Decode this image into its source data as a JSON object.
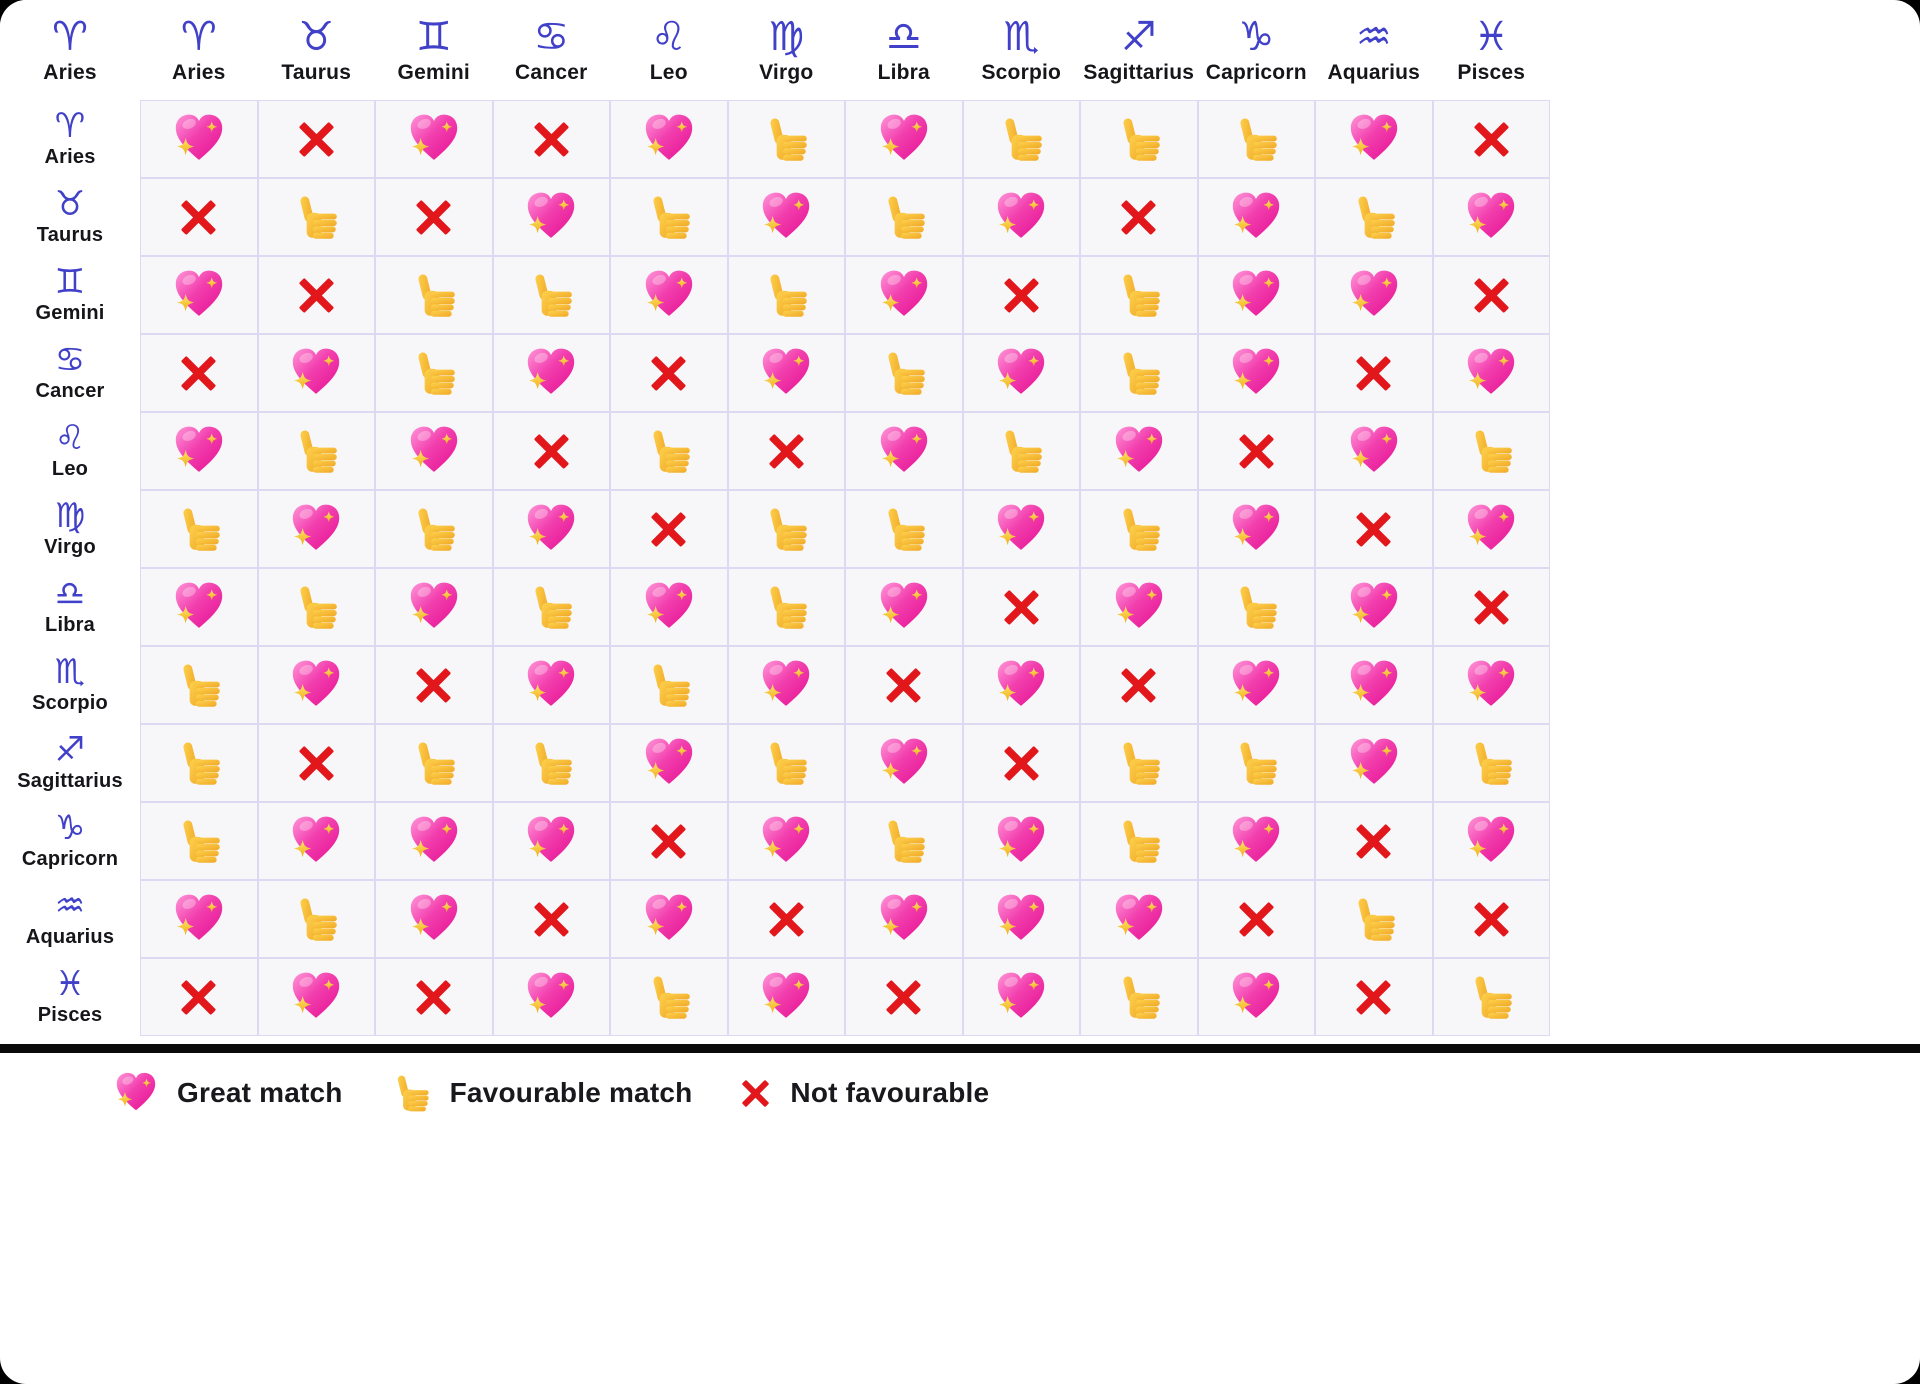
{
  "table": {
    "corner": {
      "symbol": "♈",
      "label": "Aries"
    },
    "columns": [
      {
        "symbol": "♈",
        "label": "Aries"
      },
      {
        "symbol": "♉",
        "label": "Taurus"
      },
      {
        "symbol": "♊",
        "label": "Gemini"
      },
      {
        "symbol": "♋",
        "label": "Cancer"
      },
      {
        "symbol": "♌",
        "label": "Leo"
      },
      {
        "symbol": "♍",
        "label": "Virgo"
      },
      {
        "symbol": "♎",
        "label": "Libra"
      },
      {
        "symbol": "♏",
        "label": "Scorpio"
      },
      {
        "symbol": "♐",
        "label": "Sagittarius"
      },
      {
        "symbol": "♑",
        "label": "Capricorn"
      },
      {
        "symbol": "♒",
        "label": "Aquarius"
      },
      {
        "symbol": "♓",
        "label": "Pisces"
      }
    ],
    "rows": [
      {
        "symbol": "♈",
        "label": "Aries"
      },
      {
        "symbol": "♉",
        "label": "Taurus"
      },
      {
        "symbol": "♊",
        "label": "Gemini"
      },
      {
        "symbol": "♋",
        "label": "Cancer"
      },
      {
        "symbol": "♌",
        "label": "Leo"
      },
      {
        "symbol": "♍",
        "label": "Virgo"
      },
      {
        "symbol": "♎",
        "label": "Libra"
      },
      {
        "symbol": "♏",
        "label": "Scorpio"
      },
      {
        "symbol": "♐",
        "label": "Sagittarius"
      },
      {
        "symbol": "♑",
        "label": "Capricorn"
      },
      {
        "symbol": "♒",
        "label": "Aquarius"
      },
      {
        "symbol": "♓",
        "label": "Pisces"
      }
    ]
  },
  "chart_data": {
    "type": "heatmap",
    "columns": [
      "Aries",
      "Taurus",
      "Gemini",
      "Cancer",
      "Leo",
      "Virgo",
      "Libra",
      "Scorpio",
      "Sagittarius",
      "Capricorn",
      "Aquarius",
      "Pisces"
    ],
    "rows": [
      "Aries",
      "Taurus",
      "Gemini",
      "Cancer",
      "Leo",
      "Virgo",
      "Libra",
      "Scorpio",
      "Sagittarius",
      "Capricorn",
      "Aquarius",
      "Pisces"
    ],
    "values": [
      [
        "G",
        "N",
        "G",
        "N",
        "G",
        "F",
        "G",
        "F",
        "F",
        "F",
        "G",
        "N"
      ],
      [
        "N",
        "F",
        "N",
        "G",
        "F",
        "G",
        "F",
        "G",
        "N",
        "G",
        "F",
        "G"
      ],
      [
        "G",
        "N",
        "F",
        "F",
        "G",
        "F",
        "G",
        "N",
        "F",
        "G",
        "G",
        "N"
      ],
      [
        "N",
        "G",
        "F",
        "G",
        "N",
        "G",
        "F",
        "G",
        "F",
        "G",
        "N",
        "G"
      ],
      [
        "G",
        "F",
        "G",
        "N",
        "F",
        "N",
        "G",
        "F",
        "G",
        "N",
        "G",
        "F"
      ],
      [
        "F",
        "G",
        "F",
        "G",
        "N",
        "F",
        "F",
        "G",
        "F",
        "G",
        "N",
        "G"
      ],
      [
        "G",
        "F",
        "G",
        "F",
        "G",
        "F",
        "G",
        "N",
        "G",
        "F",
        "G",
        "N"
      ],
      [
        "F",
        "G",
        "N",
        "G",
        "F",
        "G",
        "N",
        "G",
        "N",
        "G",
        "G",
        "G"
      ],
      [
        "F",
        "N",
        "F",
        "F",
        "G",
        "F",
        "G",
        "N",
        "F",
        "F",
        "G",
        "F"
      ],
      [
        "F",
        "G",
        "G",
        "G",
        "N",
        "G",
        "F",
        "G",
        "F",
        "G",
        "N",
        "G"
      ],
      [
        "G",
        "F",
        "G",
        "N",
        "G",
        "N",
        "G",
        "G",
        "G",
        "N",
        "F",
        "N"
      ],
      [
        "N",
        "G",
        "N",
        "G",
        "F",
        "G",
        "N",
        "G",
        "F",
        "G",
        "N",
        "F"
      ]
    ],
    "value_labels": {
      "G": "Great match",
      "F": "Favourable match",
      "N": "Not favourable"
    },
    "value_icons": {
      "G": "sparkling-heart",
      "F": "thumbs-up",
      "N": "cross-mark"
    },
    "legend_position": "bottom"
  },
  "legend": {
    "items": [
      {
        "icon": "sparkling-heart",
        "label": "Great match"
      },
      {
        "icon": "thumbs-up",
        "label": "Favourable match"
      },
      {
        "icon": "cross-mark",
        "label": "Not favourable"
      }
    ]
  },
  "colors": {
    "zodiac_symbol": "#4140c9",
    "heart_pink": "#f12fa7",
    "thumb_yellow": "#fbc637",
    "cross_red": "#e2171c",
    "grid_line": "#dcd9f2",
    "cell_bg": "#f7f7f9",
    "divider": "#0a0a0b",
    "text": "#15151a",
    "card_bg": "#ffffff",
    "page_bg": "#000000"
  }
}
